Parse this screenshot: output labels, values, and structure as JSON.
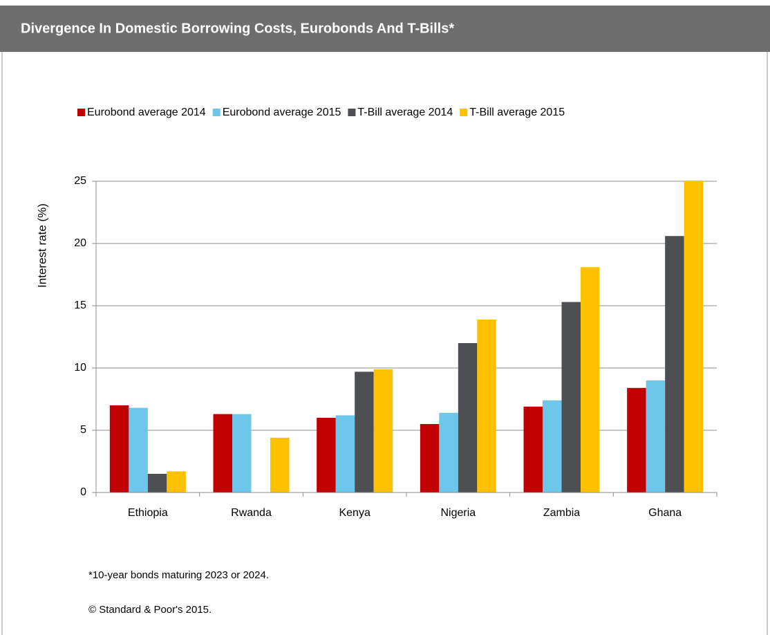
{
  "header": {
    "title": "Divergence In Domestic Borrowing Costs,  Eurobonds  And T-Bills*"
  },
  "chart_data": {
    "type": "bar",
    "categories": [
      "Ethiopia",
      "Rwanda",
      "Kenya",
      "Nigeria",
      "Zambia",
      "Ghana"
    ],
    "series": [
      {
        "name": "Eurobond average 2014",
        "color": "#c00000",
        "values": [
          7.0,
          6.3,
          6.0,
          5.5,
          6.9,
          8.4
        ]
      },
      {
        "name": "Eurobond average 2015",
        "color": "#6ec6ea",
        "values": [
          6.8,
          6.3,
          6.2,
          6.4,
          7.4,
          9.0
        ]
      },
      {
        "name": "T-Bill average 2014",
        "color": "#4d4f53",
        "values": [
          1.5,
          null,
          9.7,
          12.0,
          15.3,
          20.6
        ]
      },
      {
        "name": "T-Bill average 2015",
        "color": "#ffc000",
        "values": [
          1.7,
          4.4,
          9.9,
          13.9,
          18.1,
          25.0
        ]
      }
    ],
    "y_label": "Interest rate (%)",
    "ylim": [
      0,
      25
    ],
    "yticks": [
      0,
      5,
      10,
      15,
      20,
      25
    ],
    "grid": true,
    "legend": "top"
  },
  "footer": {
    "note": "*10-year bonds maturing 2023 or 2024.",
    "source": "© Standard & Poor's 2015."
  }
}
